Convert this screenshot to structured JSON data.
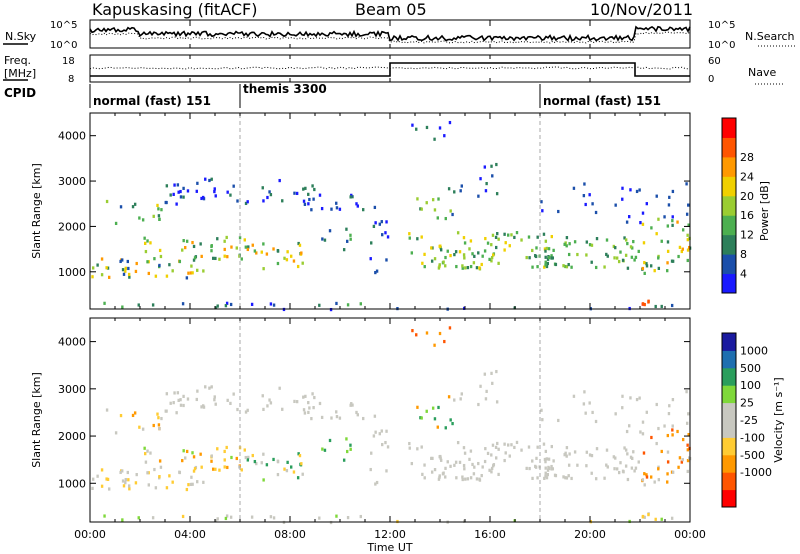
{
  "header": {
    "station": "Kapuskasing (fitACF)",
    "beam": "Beam 05",
    "date": "10/Nov/2011"
  },
  "noise_panel": {
    "left_label": "N.Sky",
    "right_label": "N.Search",
    "tick_top_left": "10^5",
    "tick_bottom_left": "10^0",
    "tick_top_right": "10^5",
    "tick_bottom_right": "10^0"
  },
  "freq_panel": {
    "left_label_1": "Freq.",
    "left_label_2": "[MHz]",
    "right_label": "Nave",
    "left_ticks": [
      "18",
      "8"
    ],
    "right_ticks": [
      "60",
      "0"
    ]
  },
  "cpid": {
    "label": "CPID",
    "modes": [
      {
        "text": "normal (fast) 151",
        "start_hour": 0
      },
      {
        "text": "themis 3300",
        "start_hour": 6
      },
      {
        "text": "normal (fast) 151",
        "start_hour": 18
      }
    ]
  },
  "colors": {
    "power": [
      "#1a1aff",
      "#1b4faa",
      "#2d7f5a",
      "#4caf50",
      "#9acd32",
      "#f0d000",
      "#ff9900",
      "#ff5500",
      "#ff0000"
    ],
    "velocity": [
      "#ff0000",
      "#ff5500",
      "#ff9900",
      "#ffcc33",
      "#c8c8c0",
      "#c8c8c0",
      "#7fd83a",
      "#2a9e5c",
      "#1e6fb0",
      "#1a1a9f"
    ]
  },
  "chart_data": [
    {
      "type": "heatmap",
      "panel": "power",
      "ylabel": "Slant Range [km]",
      "yticks": [
        "1000",
        "2000",
        "3000",
        "4000"
      ],
      "ylim": [
        180,
        4500
      ],
      "xlim": [
        0,
        24
      ],
      "colorbar_label": "Power [dB]",
      "colorbar_ticks": [
        "4",
        "8",
        "12",
        "16",
        "20",
        "24",
        "28"
      ]
    },
    {
      "type": "heatmap",
      "panel": "velocity",
      "ylabel": "Slant Range [km]",
      "yticks": [
        "1000",
        "2000",
        "3000",
        "4000"
      ],
      "ylim": [
        180,
        4500
      ],
      "xlim": [
        0,
        24
      ],
      "colorbar_label": "Velocity [m s⁻¹]",
      "colorbar_ticks": [
        "1000",
        "500",
        "100",
        "25",
        "-25",
        "-100",
        "-500",
        "-1000"
      ]
    }
  ],
  "time_axis": {
    "ticks": [
      "00:00",
      "04:00",
      "08:00",
      "12:00",
      "16:00",
      "20:00",
      "00:00"
    ],
    "xlabel": "Time UT"
  }
}
